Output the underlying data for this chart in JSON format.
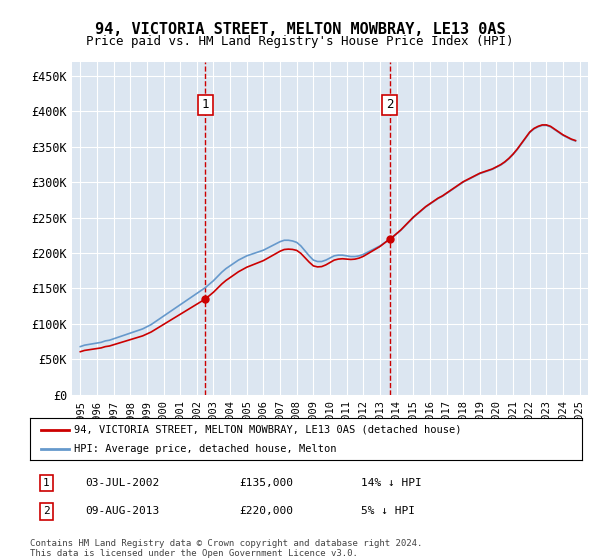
{
  "title": "94, VICTORIA STREET, MELTON MOWBRAY, LE13 0AS",
  "subtitle": "Price paid vs. HM Land Registry's House Price Index (HPI)",
  "legend_line1": "94, VICTORIA STREET, MELTON MOWBRAY, LE13 0AS (detached house)",
  "legend_line2": "HPI: Average price, detached house, Melton",
  "footnote": "Contains HM Land Registry data © Crown copyright and database right 2024.\nThis data is licensed under the Open Government Licence v3.0.",
  "transaction1": {
    "date": "03-JUL-2002",
    "price": "£135,000",
    "hpi_diff": "14% ↓ HPI",
    "year": 2002.5
  },
  "transaction2": {
    "date": "09-AUG-2013",
    "price": "£220,000",
    "hpi_diff": "5% ↓ HPI",
    "year": 2013.6
  },
  "plot_bg_color": "#dce6f1",
  "red_line_color": "#cc0000",
  "blue_line_color": "#6699cc",
  "vline_color": "#cc0000",
  "ylim": [
    0,
    470000
  ],
  "yticks": [
    0,
    50000,
    100000,
    150000,
    200000,
    250000,
    300000,
    350000,
    400000,
    450000
  ],
  "ytick_labels": [
    "£0",
    "£50K",
    "£100K",
    "£150K",
    "£200K",
    "£250K",
    "£300K",
    "£350K",
    "£400K",
    "£450K"
  ],
  "xlim": [
    1994.5,
    2025.5
  ],
  "xticks": [
    1995,
    1996,
    1997,
    1998,
    1999,
    2000,
    2001,
    2002,
    2003,
    2004,
    2005,
    2006,
    2007,
    2008,
    2009,
    2010,
    2011,
    2012,
    2013,
    2014,
    2015,
    2016,
    2017,
    2018,
    2019,
    2020,
    2021,
    2022,
    2023,
    2024,
    2025
  ],
  "hpi_years": [
    1995.0,
    1995.25,
    1995.5,
    1995.75,
    1996.0,
    1996.25,
    1996.5,
    1996.75,
    1997.0,
    1997.25,
    1997.5,
    1997.75,
    1998.0,
    1998.25,
    1998.5,
    1998.75,
    1999.0,
    1999.25,
    1999.5,
    1999.75,
    2000.0,
    2000.25,
    2000.5,
    2000.75,
    2001.0,
    2001.25,
    2001.5,
    2001.75,
    2002.0,
    2002.25,
    2002.5,
    2002.75,
    2003.0,
    2003.25,
    2003.5,
    2003.75,
    2004.0,
    2004.25,
    2004.5,
    2004.75,
    2005.0,
    2005.25,
    2005.5,
    2005.75,
    2006.0,
    2006.25,
    2006.5,
    2006.75,
    2007.0,
    2007.25,
    2007.5,
    2007.75,
    2008.0,
    2008.25,
    2008.5,
    2008.75,
    2009.0,
    2009.25,
    2009.5,
    2009.75,
    2010.0,
    2010.25,
    2010.5,
    2010.75,
    2011.0,
    2011.25,
    2011.5,
    2011.75,
    2012.0,
    2012.25,
    2012.5,
    2012.75,
    2013.0,
    2013.25,
    2013.5,
    2013.75,
    2014.0,
    2014.25,
    2014.5,
    2014.75,
    2015.0,
    2015.25,
    2015.5,
    2015.75,
    2016.0,
    2016.25,
    2016.5,
    2016.75,
    2017.0,
    2017.25,
    2017.5,
    2017.75,
    2018.0,
    2018.25,
    2018.5,
    2018.75,
    2019.0,
    2019.25,
    2019.5,
    2019.75,
    2020.0,
    2020.25,
    2020.5,
    2020.75,
    2021.0,
    2021.25,
    2021.5,
    2021.75,
    2022.0,
    2022.25,
    2022.5,
    2022.75,
    2023.0,
    2023.25,
    2023.5,
    2023.75,
    2024.0,
    2024.25,
    2024.5,
    2024.75
  ],
  "hpi_values": [
    68000,
    70000,
    71000,
    72000,
    73000,
    74000,
    76000,
    77000,
    79000,
    81000,
    83000,
    85000,
    87000,
    89000,
    91000,
    93000,
    96000,
    99000,
    103000,
    107000,
    111000,
    115000,
    119000,
    123000,
    127000,
    131000,
    135000,
    139000,
    143000,
    147000,
    151000,
    156000,
    161000,
    167000,
    173000,
    178000,
    182000,
    186000,
    190000,
    193000,
    196000,
    198000,
    200000,
    202000,
    204000,
    207000,
    210000,
    213000,
    216000,
    218000,
    218000,
    217000,
    215000,
    210000,
    203000,
    196000,
    190000,
    188000,
    188000,
    190000,
    193000,
    196000,
    197000,
    197000,
    196000,
    195000,
    195000,
    196000,
    198000,
    201000,
    204000,
    207000,
    210000,
    214000,
    218000,
    222000,
    227000,
    232000,
    238000,
    244000,
    250000,
    255000,
    260000,
    265000,
    269000,
    273000,
    277000,
    280000,
    284000,
    288000,
    292000,
    296000,
    300000,
    303000,
    306000,
    309000,
    312000,
    314000,
    316000,
    318000,
    321000,
    324000,
    328000,
    333000,
    339000,
    346000,
    354000,
    362000,
    370000,
    375000,
    378000,
    380000,
    380000,
    378000,
    374000,
    370000,
    366000,
    363000,
    360000,
    358000
  ],
  "price_paid_points": [
    {
      "year": 2002.5,
      "price": 135000
    },
    {
      "year": 2013.6,
      "price": 220000
    }
  ]
}
